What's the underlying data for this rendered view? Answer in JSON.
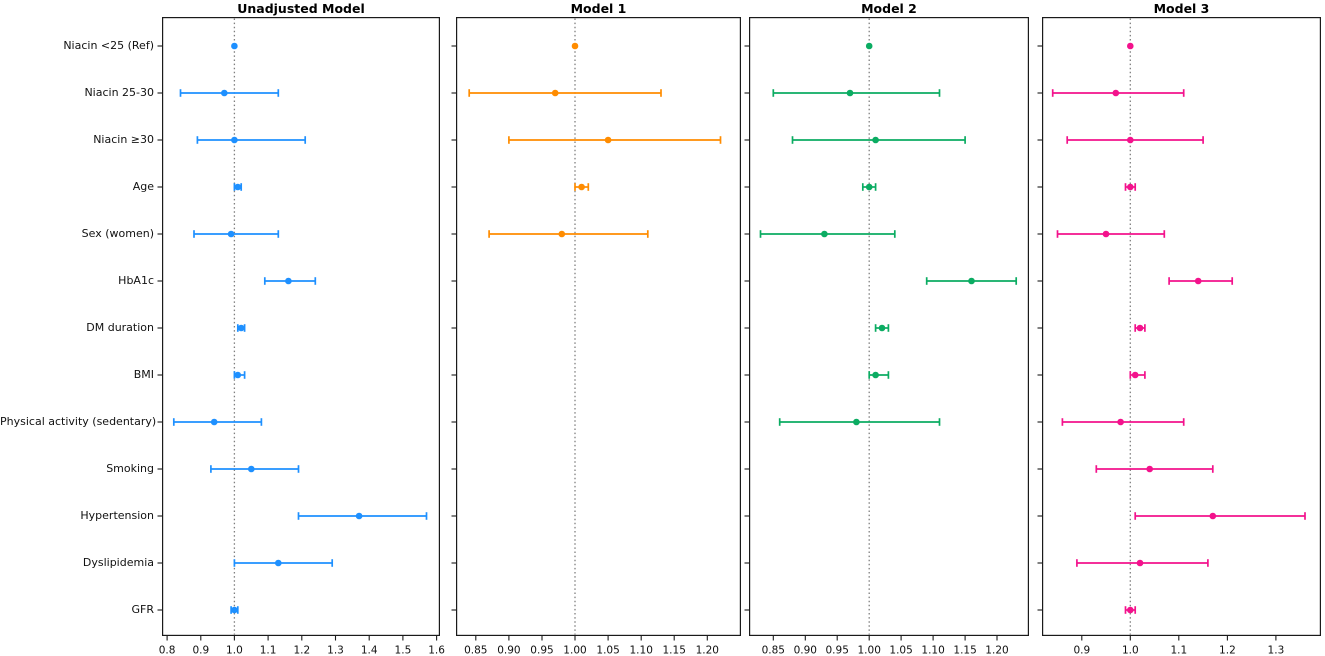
{
  "chart_data": {
    "type": "forest",
    "layout": "four horizontal panels sharing one category axis, dotted reference line at 1.0, no gridlines, no legend",
    "reference_line": 1.0,
    "categories": [
      "Niacin <25 (Ref)",
      "Niacin 25-30",
      "Niacin ≥30",
      "Age",
      "Sex (women)",
      "HbA1c",
      "DM duration",
      "BMI",
      "Physical activity (sedentary)",
      "Smoking",
      "Hypertension",
      "Dyslipidemia",
      "GFR"
    ],
    "panels": [
      {
        "title": "Unadjusted Model",
        "color": "#1E90FF",
        "xlim": [
          0.785,
          1.61
        ],
        "xticks": [
          0.8,
          0.9,
          1.0,
          1.1,
          1.2,
          1.3,
          1.4,
          1.5,
          1.6
        ],
        "xtick_labels": [
          "0.8",
          "0.9",
          "1.0",
          "1.1",
          "1.2",
          "1.3",
          "1.4",
          "1.5",
          "1.6"
        ],
        "points": [
          {
            "est": 1.0,
            "lo": null,
            "hi": null
          },
          {
            "est": 0.97,
            "lo": 0.84,
            "hi": 1.13
          },
          {
            "est": 1.0,
            "lo": 0.89,
            "hi": 1.21
          },
          {
            "est": 1.01,
            "lo": 1.0,
            "hi": 1.02
          },
          {
            "est": 0.99,
            "lo": 0.88,
            "hi": 1.13
          },
          {
            "est": 1.16,
            "lo": 1.09,
            "hi": 1.24
          },
          {
            "est": 1.02,
            "lo": 1.01,
            "hi": 1.03
          },
          {
            "est": 1.01,
            "lo": 1.0,
            "hi": 1.03
          },
          {
            "est": 0.94,
            "lo": 0.82,
            "hi": 1.08
          },
          {
            "est": 1.05,
            "lo": 0.93,
            "hi": 1.19
          },
          {
            "est": 1.37,
            "lo": 1.19,
            "hi": 1.57
          },
          {
            "est": 1.13,
            "lo": 1.0,
            "hi": 1.29
          },
          {
            "est": 1.0,
            "lo": 0.99,
            "hi": 1.01
          }
        ]
      },
      {
        "title": "Model 1",
        "color": "#FF8C00",
        "xlim": [
          0.82,
          1.251
        ],
        "xticks": [
          0.85,
          0.9,
          0.95,
          1.0,
          1.05,
          1.1,
          1.15,
          1.2
        ],
        "xtick_labels": [
          "0.85",
          "0.90",
          "0.95",
          "1.00",
          "1.05",
          "1.10",
          "1.15",
          "1.20"
        ],
        "points": [
          {
            "est": 1.0,
            "lo": null,
            "hi": null
          },
          {
            "est": 0.97,
            "lo": 0.84,
            "hi": 1.13
          },
          {
            "est": 1.05,
            "lo": 0.9,
            "hi": 1.22
          },
          {
            "est": 1.01,
            "lo": 1.0,
            "hi": 1.02
          },
          {
            "est": 0.98,
            "lo": 0.87,
            "hi": 1.11
          },
          null,
          null,
          null,
          null,
          null,
          null,
          null,
          null
        ]
      },
      {
        "title": "Model 2",
        "color": "#0BAC62",
        "xlim": [
          0.812,
          1.25
        ],
        "xticks": [
          0.85,
          0.9,
          0.95,
          1.0,
          1.05,
          1.1,
          1.15,
          1.2
        ],
        "xtick_labels": [
          "0.85",
          "0.90",
          "0.95",
          "1.00",
          "1.05",
          "1.10",
          "1.15",
          "1.20"
        ],
        "points": [
          {
            "est": 1.0,
            "lo": null,
            "hi": null
          },
          {
            "est": 0.97,
            "lo": 0.85,
            "hi": 1.11
          },
          {
            "est": 1.01,
            "lo": 0.88,
            "hi": 1.15
          },
          {
            "est": 1.0,
            "lo": 0.99,
            "hi": 1.01
          },
          {
            "est": 0.93,
            "lo": 0.83,
            "hi": 1.04
          },
          {
            "est": 1.16,
            "lo": 1.09,
            "hi": 1.23
          },
          {
            "est": 1.02,
            "lo": 1.01,
            "hi": 1.03
          },
          {
            "est": 1.01,
            "lo": 1.0,
            "hi": 1.03
          },
          {
            "est": 0.98,
            "lo": 0.86,
            "hi": 1.11
          },
          null,
          null,
          null,
          null
        ]
      },
      {
        "title": "Model 3",
        "color": "#F3128C",
        "xlim": [
          0.818,
          1.393
        ],
        "xticks": [
          0.9,
          1.0,
          1.1,
          1.2,
          1.3
        ],
        "xtick_labels": [
          "0.9",
          "1.0",
          "1.1",
          "1.2",
          "1.3"
        ],
        "points": [
          {
            "est": 1.0,
            "lo": null,
            "hi": null
          },
          {
            "est": 0.97,
            "lo": 0.84,
            "hi": 1.11
          },
          {
            "est": 1.0,
            "lo": 0.87,
            "hi": 1.15
          },
          {
            "est": 1.0,
            "lo": 0.99,
            "hi": 1.01
          },
          {
            "est": 0.95,
            "lo": 0.85,
            "hi": 1.07
          },
          {
            "est": 1.14,
            "lo": 1.08,
            "hi": 1.21
          },
          {
            "est": 1.02,
            "lo": 1.01,
            "hi": 1.03
          },
          {
            "est": 1.01,
            "lo": 1.0,
            "hi": 1.03
          },
          {
            "est": 0.98,
            "lo": 0.86,
            "hi": 1.11
          },
          {
            "est": 1.04,
            "lo": 0.93,
            "hi": 1.17
          },
          {
            "est": 1.17,
            "lo": 1.01,
            "hi": 1.36
          },
          {
            "est": 1.02,
            "lo": 0.89,
            "hi": 1.16
          },
          {
            "est": 1.0,
            "lo": 0.99,
            "hi": 1.01
          }
        ]
      }
    ]
  }
}
